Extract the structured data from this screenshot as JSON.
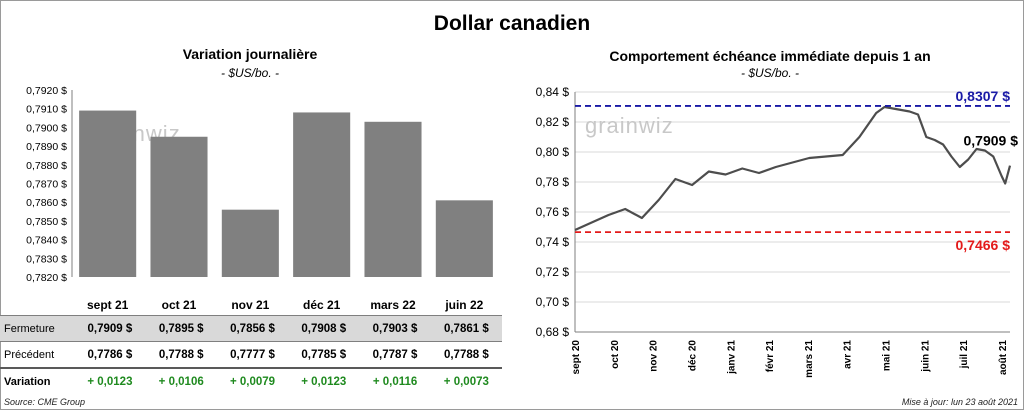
{
  "title": "Dollar canadien",
  "footer": {
    "source": "Source: CME Group",
    "updated": "Mise à jour: lun 23 août 2021"
  },
  "watermark": "grainwiz",
  "colors": {
    "bar": "#808080",
    "line": "#4d4d4d",
    "high_line": "#1a1aa6",
    "low_line": "#e31a1a",
    "green": "#1f8a1f",
    "grid": "#d9d9d9"
  },
  "table": {
    "rows": [
      {
        "label": "Fermeture",
        "values": [
          "0,7909  $",
          "0,7895  $",
          "0,7856  $",
          "0,7908  $",
          "0,7903  $",
          "0,7861  $"
        ]
      },
      {
        "label": "Précédent",
        "values": [
          "0,7786  $",
          "0,7788  $",
          "0,7777  $",
          "0,7785  $",
          "0,7787  $",
          "0,7788  $"
        ]
      },
      {
        "label": "Variation",
        "values": [
          "+ 0,0123",
          "+ 0,0106",
          "+ 0,0079",
          "+ 0,0123",
          "+ 0,0116",
          "+ 0,0073"
        ]
      }
    ]
  },
  "chart_data": [
    {
      "type": "bar",
      "title": "Variation  journalière",
      "subtitle": "- $US/bo. -",
      "categories": [
        "sept 21",
        "oct 21",
        "nov 21",
        "déc 21",
        "mars 22",
        "juin 22"
      ],
      "values": [
        0.7909,
        0.7895,
        0.7856,
        0.7908,
        0.7903,
        0.7861
      ],
      "ylim": [
        0.782,
        0.792
      ],
      "yticks": [
        "0,7820 $",
        "0,7830 $",
        "0,7840 $",
        "0,7850 $",
        "0,7860 $",
        "0,7870 $",
        "0,7880 $",
        "0,7890 $",
        "0,7900 $",
        "0,7910 $",
        "0,7920 $"
      ],
      "grid": false
    },
    {
      "type": "line",
      "title": "Comportement échéance immédiate depuis 1 an",
      "subtitle": "- $US/bo. -",
      "ylim": [
        0.68,
        0.84
      ],
      "yticks": [
        "0,68 $",
        "0,70 $",
        "0,72 $",
        "0,74 $",
        "0,76 $",
        "0,78 $",
        "0,80 $",
        "0,82 $",
        "0,84 $"
      ],
      "xticks": [
        "sept 20",
        "oct 20",
        "nov 20",
        "déc 20",
        "janv 21",
        "févr 21",
        "mars 21",
        "avr 21",
        "mai 21",
        "juin 21",
        "juil 21",
        "août 21"
      ],
      "x": [
        "2020-08-24",
        "2020-09-07",
        "2020-09-21",
        "2020-10-05",
        "2020-10-19",
        "2020-11-02",
        "2020-11-16",
        "2020-11-30",
        "2020-12-14",
        "2020-12-28",
        "2021-01-11",
        "2021-01-25",
        "2021-02-08",
        "2021-02-22",
        "2021-03-08",
        "2021-03-22",
        "2021-04-05",
        "2021-04-19",
        "2021-05-03",
        "2021-05-10",
        "2021-05-17",
        "2021-05-24",
        "2021-05-31",
        "2021-06-07",
        "2021-06-14",
        "2021-06-21",
        "2021-06-28",
        "2021-07-05",
        "2021-07-12",
        "2021-07-19",
        "2021-07-26",
        "2021-08-02",
        "2021-08-09",
        "2021-08-16",
        "2021-08-19",
        "2021-08-23"
      ],
      "series": [
        {
          "values": [
            0.748,
            0.753,
            0.758,
            0.762,
            0.756,
            0.768,
            0.782,
            0.778,
            0.787,
            0.785,
            0.789,
            0.786,
            0.79,
            0.793,
            0.796,
            0.797,
            0.798,
            0.81,
            0.826,
            0.83,
            0.829,
            0.828,
            0.827,
            0.825,
            0.81,
            0.808,
            0.805,
            0.797,
            0.79,
            0.795,
            0.802,
            0.801,
            0.797,
            0.784,
            0.779,
            0.7909
          ]
        }
      ],
      "reference_lines": [
        {
          "label": "0,8307 $",
          "value": 0.8307,
          "color": "#1a1aa6"
        },
        {
          "label": "0,7466 $",
          "value": 0.7466,
          "color": "#e31a1a"
        }
      ],
      "last_label": "0,7909 $",
      "grid": true
    }
  ]
}
